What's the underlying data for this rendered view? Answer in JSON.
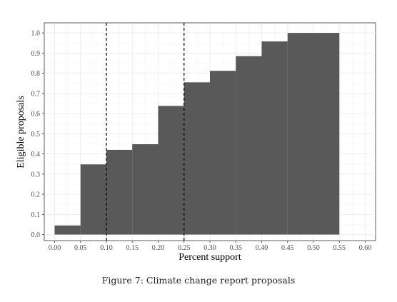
{
  "chart_data": {
    "type": "bar",
    "xlabel": "Percent support",
    "ylabel": "Eligible proposals",
    "xlim": [
      -0.02,
      0.62
    ],
    "ylim": [
      -0.03,
      1.05
    ],
    "x_ticks": [
      0.0,
      0.05,
      0.1,
      0.15,
      0.2,
      0.25,
      0.3,
      0.35,
      0.4,
      0.45,
      0.5,
      0.55,
      0.6
    ],
    "x_tick_labels": [
      "0.00",
      "0.05",
      "0.10",
      "0.15",
      "0.20",
      "0.25",
      "0.30",
      "0.35",
      "0.40",
      "0.45",
      "0.50",
      "0.55",
      "0.60"
    ],
    "y_ticks": [
      0.0,
      0.1,
      0.2,
      0.3,
      0.4,
      0.5,
      0.6,
      0.7,
      0.8,
      0.9,
      1.0
    ],
    "y_tick_labels": [
      "0.0",
      "0.1",
      "0.2",
      "0.3",
      "0.4",
      "0.5",
      "0.6",
      "0.7",
      "0.8",
      "0.9",
      "1.0"
    ],
    "bins": [
      {
        "x0": 0.0,
        "x1": 0.05,
        "value": 0.045
      },
      {
        "x0": 0.05,
        "x1": 0.1,
        "value": 0.348
      },
      {
        "x0": 0.1,
        "x1": 0.15,
        "value": 0.42
      },
      {
        "x0": 0.15,
        "x1": 0.2,
        "value": 0.448
      },
      {
        "x0": 0.2,
        "x1": 0.25,
        "value": 0.638
      },
      {
        "x0": 0.25,
        "x1": 0.3,
        "value": 0.755
      },
      {
        "x0": 0.3,
        "x1": 0.35,
        "value": 0.812
      },
      {
        "x0": 0.35,
        "x1": 0.4,
        "value": 0.885
      },
      {
        "x0": 0.4,
        "x1": 0.45,
        "value": 0.958
      },
      {
        "x0": 0.45,
        "x1": 0.5,
        "value": 1.0
      },
      {
        "x0": 0.5,
        "x1": 0.55,
        "value": 1.0
      }
    ],
    "reference_lines": [
      0.1,
      0.25
    ],
    "bar_color": "#595959",
    "grid": true,
    "legend": "none"
  },
  "caption": "Figure 7: Climate change report proposals"
}
